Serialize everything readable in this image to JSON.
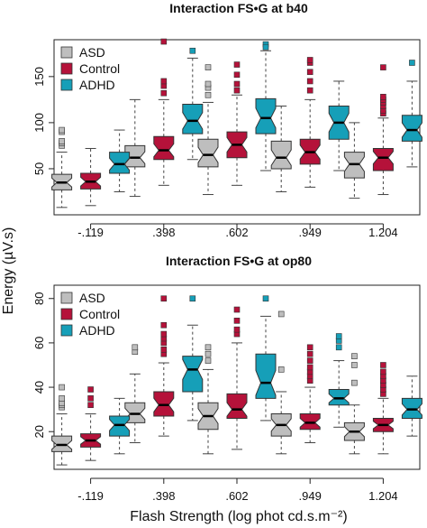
{
  "figure": {
    "ylabel": "Energy (µV.s)",
    "xlabel": "Flash Strength (log phot cd.s.m⁻²)"
  },
  "colors": {
    "ASD": "#bebebe",
    "Control": "#b5123a",
    "ADHD": "#169fb8"
  },
  "chart_data": [
    {
      "type": "boxplot",
      "title": "Interaction FS•G at b40",
      "categories": [
        "-.119",
        ".398",
        ".602",
        ".949",
        "1.204"
      ],
      "ylim": [
        0,
        190
      ],
      "yticks": [
        50,
        100,
        150
      ],
      "notched": true,
      "legend": {
        "position": "top-left",
        "entries": [
          "ASD",
          "Control",
          "ADHD"
        ]
      },
      "series": [
        {
          "name": "ASD",
          "boxes": [
            {
              "min": 8,
              "q1": 27,
              "median": 35,
              "q3": 44,
              "max": 68,
              "outliers": [
                75,
                78,
                80,
                90,
                92
              ]
            },
            {
              "min": 20,
              "q1": 52,
              "median": 62,
              "q3": 75,
              "max": 125,
              "outliers": []
            },
            {
              "min": 22,
              "q1": 52,
              "median": 65,
              "q3": 82,
              "max": 122,
              "outliers": [
                130,
                138,
                142,
                160
              ]
            },
            {
              "min": 25,
              "q1": 50,
              "median": 62,
              "q3": 80,
              "max": 118,
              "outliers": []
            },
            {
              "min": 18,
              "q1": 40,
              "median": 55,
              "q3": 68,
              "max": 100,
              "outliers": []
            }
          ]
        },
        {
          "name": "Control",
          "boxes": [
            {
              "min": 10,
              "q1": 28,
              "median": 36,
              "q3": 45,
              "max": 72,
              "outliers": []
            },
            {
              "min": 32,
              "q1": 60,
              "median": 70,
              "q3": 85,
              "max": 125,
              "outliers": [
                132,
                140,
                145,
                188
              ]
            },
            {
              "min": 32,
              "q1": 62,
              "median": 76,
              "q3": 90,
              "max": 130,
              "outliers": [
                135,
                142,
                152,
                163
              ]
            },
            {
              "min": 30,
              "q1": 55,
              "median": 68,
              "q3": 82,
              "max": 125,
              "outliers": [
                135,
                145,
                155,
                165,
                168
              ]
            },
            {
              "min": 22,
              "q1": 48,
              "median": 62,
              "q3": 72,
              "max": 105,
              "outliers": [
                110,
                113,
                118,
                122,
                125,
                128,
                160
              ]
            }
          ]
        },
        {
          "name": "ADHD",
          "boxes": [
            {
              "min": 25,
              "q1": 45,
              "median": 55,
              "q3": 68,
              "max": 92,
              "outliers": []
            },
            {
              "min": 60,
              "q1": 88,
              "median": 102,
              "q3": 120,
              "max": 170,
              "outliers": [
                178
              ]
            },
            {
              "min": 48,
              "q1": 88,
              "median": 105,
              "q3": 126,
              "max": 178,
              "outliers": [
                185,
                182
              ]
            },
            {
              "min": 48,
              "q1": 82,
              "median": 100,
              "q3": 118,
              "max": 145,
              "outliers": []
            },
            {
              "min": 52,
              "q1": 80,
              "median": 92,
              "q3": 108,
              "max": 145,
              "outliers": [
                165
              ]
            }
          ]
        }
      ]
    },
    {
      "type": "boxplot",
      "title": "Interaction FS•G at op80",
      "categories": [
        "-.119",
        ".398",
        ".602",
        ".949",
        "1.204"
      ],
      "ylim": [
        3,
        86
      ],
      "yticks": [
        20,
        40,
        60,
        80
      ],
      "notched": true,
      "legend": {
        "position": "top-left",
        "entries": [
          "ASD",
          "Control",
          "ADHD"
        ]
      },
      "series": [
        {
          "name": "ASD",
          "boxes": [
            {
              "min": 5,
              "q1": 11,
              "median": 14,
              "q3": 18,
              "max": 28,
              "outliers": [
                31,
                32,
                33,
                35,
                40
              ]
            },
            {
              "min": 15,
              "q1": 24,
              "median": 28,
              "q3": 33,
              "max": 46,
              "outliers": [
                56,
                58
              ]
            },
            {
              "min": 10,
              "q1": 21,
              "median": 27,
              "q3": 33,
              "max": 48,
              "outliers": [
                52,
                55,
                58
              ]
            },
            {
              "min": 10,
              "q1": 18,
              "median": 23,
              "q3": 28,
              "max": 38,
              "outliers": [
                48,
                73
              ]
            },
            {
              "min": 10,
              "q1": 16,
              "median": 20,
              "q3": 24,
              "max": 32,
              "outliers": [
                42,
                50,
                54
              ]
            }
          ]
        },
        {
          "name": "Control",
          "boxes": [
            {
              "min": 7,
              "q1": 13,
              "median": 16,
              "q3": 19,
              "max": 28,
              "outliers": [
                32,
                35,
                39
              ]
            },
            {
              "min": 18,
              "q1": 27,
              "median": 32,
              "q3": 38,
              "max": 51,
              "outliers": [
                55,
                57,
                60,
                62,
                64,
                68,
                80
              ]
            },
            {
              "min": 12,
              "q1": 26,
              "median": 30,
              "q3": 37,
              "max": 60,
              "outliers": [
                64,
                66,
                70,
                75
              ]
            },
            {
              "min": 15,
              "q1": 21,
              "median": 24,
              "q3": 28,
              "max": 40,
              "outliers": [
                43,
                45,
                47,
                49,
                52,
                55,
                58
              ]
            },
            {
              "min": 10,
              "q1": 20,
              "median": 23,
              "q3": 26,
              "max": 35,
              "outliers": [
                37,
                39,
                41,
                43,
                45,
                47,
                50
              ]
            }
          ]
        },
        {
          "name": "ADHD",
          "boxes": [
            {
              "min": 10,
              "q1": 18,
              "median": 23,
              "q3": 27,
              "max": 35,
              "outliers": []
            },
            {
              "min": 25,
              "q1": 38,
              "median": 48,
              "q3": 54,
              "max": 68,
              "outliers": [
                80
              ]
            },
            {
              "min": 25,
              "q1": 35,
              "median": 42,
              "q3": 55,
              "max": 72,
              "outliers": [
                80
              ]
            },
            {
              "min": 22,
              "q1": 32,
              "median": 35,
              "q3": 39,
              "max": 52,
              "outliers": [
                58,
                61,
                63
              ]
            },
            {
              "min": 18,
              "q1": 26,
              "median": 30,
              "q3": 35,
              "max": 45,
              "outliers": []
            }
          ]
        }
      ]
    }
  ]
}
